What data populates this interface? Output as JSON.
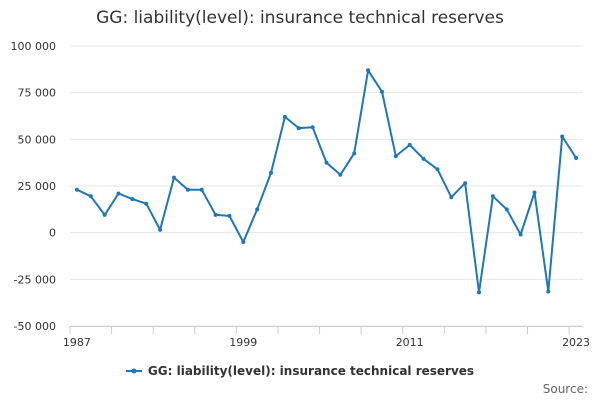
{
  "chart_data": {
    "type": "line",
    "title": "GG: liability(level): insurance technical reserves",
    "xlabel": "",
    "ylabel": "",
    "xlim": [
      1987,
      2023
    ],
    "ylim": [
      -50000,
      100000
    ],
    "y_ticks": [
      100000,
      75000,
      50000,
      25000,
      0,
      -25000,
      -50000
    ],
    "y_tick_labels": [
      "100 000",
      "75 000",
      "50 000",
      "25 000",
      "0",
      "-25 000",
      "-50 000"
    ],
    "x_tick_labels": [
      "1987",
      "1999",
      "2011",
      "2023"
    ],
    "x_tick_values": [
      1987,
      1999,
      2011,
      2023
    ],
    "grid": true,
    "legend_position": "bottom",
    "series": [
      {
        "name": "GG: liability(level): insurance technical reserves",
        "color": "#1f77b4",
        "x": [
          1987,
          1988,
          1989,
          1990,
          1991,
          1992,
          1993,
          1994,
          1995,
          1996,
          1997,
          1998,
          1999,
          2000,
          2001,
          2002,
          2003,
          2004,
          2005,
          2006,
          2007,
          2008,
          2009,
          2010,
          2011,
          2012,
          2013,
          2014,
          2015,
          2016,
          2017,
          2018,
          2019,
          2020,
          2021,
          2022,
          2023
        ],
        "values": [
          23000,
          19500,
          9500,
          21000,
          18000,
          15500,
          1500,
          29500,
          23000,
          23000,
          9500,
          9000,
          -5000,
          12500,
          32000,
          62000,
          56000,
          56500,
          37500,
          31000,
          42500,
          87000,
          75500,
          41000,
          47000,
          39500,
          34000,
          19000,
          26500,
          -32000,
          19500,
          12500,
          -1000,
          21500,
          -31500,
          51500,
          40000
        ]
      }
    ]
  },
  "source_label": "Source:"
}
